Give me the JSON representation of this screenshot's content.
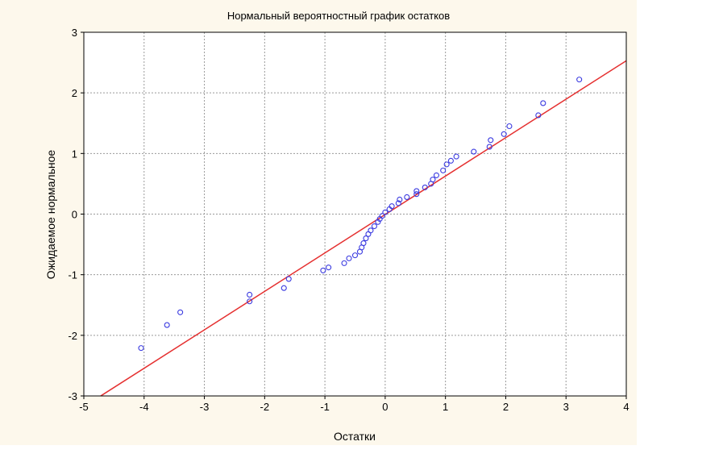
{
  "chart_data": {
    "type": "scatter",
    "title": "Нормальный вероятностный график остатков",
    "xlabel": "Остатки",
    "ylabel": "Ожидаемое нормальное",
    "xlim": [
      -5,
      4
    ],
    "ylim": [
      -3,
      3
    ],
    "xticks": [
      -5,
      -4,
      -3,
      -2,
      -1,
      0,
      1,
      2,
      3,
      4
    ],
    "yticks": [
      -3,
      -2,
      -1,
      0,
      1,
      2,
      3
    ],
    "grid": true,
    "background_color": "#fdf8ec",
    "point_color": "#3a3ae0",
    "line_color": "#e53030",
    "points": [
      [
        -4.05,
        -2.21
      ],
      [
        -3.62,
        -1.83
      ],
      [
        -3.4,
        -1.62
      ],
      [
        -2.25,
        -1.44
      ],
      [
        -2.25,
        -1.33
      ],
      [
        -1.68,
        -1.22
      ],
      [
        -1.6,
        -1.07
      ],
      [
        -1.03,
        -0.93
      ],
      [
        -0.94,
        -0.88
      ],
      [
        -0.68,
        -0.81
      ],
      [
        -0.6,
        -0.73
      ],
      [
        -0.5,
        -0.68
      ],
      [
        -0.42,
        -0.62
      ],
      [
        -0.39,
        -0.55
      ],
      [
        -0.36,
        -0.48
      ],
      [
        -0.32,
        -0.4
      ],
      [
        -0.28,
        -0.33
      ],
      [
        -0.24,
        -0.27
      ],
      [
        -0.18,
        -0.2
      ],
      [
        -0.12,
        -0.13
      ],
      [
        -0.09,
        -0.08
      ],
      [
        -0.05,
        -0.03
      ],
      [
        0.0,
        0.03
      ],
      [
        0.07,
        0.08
      ],
      [
        0.11,
        0.13
      ],
      [
        0.22,
        0.18
      ],
      [
        0.24,
        0.24
      ],
      [
        0.36,
        0.28
      ],
      [
        0.52,
        0.33
      ],
      [
        0.52,
        0.38
      ],
      [
        0.66,
        0.44
      ],
      [
        0.76,
        0.5
      ],
      [
        0.79,
        0.57
      ],
      [
        0.85,
        0.64
      ],
      [
        0.96,
        0.72
      ],
      [
        1.02,
        0.82
      ],
      [
        1.09,
        0.88
      ],
      [
        1.18,
        0.95
      ],
      [
        1.47,
        1.03
      ],
      [
        1.73,
        1.11
      ],
      [
        1.75,
        1.22
      ],
      [
        1.97,
        1.32
      ],
      [
        2.06,
        1.45
      ],
      [
        2.54,
        1.63
      ],
      [
        2.62,
        1.83
      ],
      [
        3.22,
        2.22
      ]
    ],
    "reference_line": {
      "x": [
        -4.72,
        4.0
      ],
      "y": [
        -3.0,
        2.53
      ]
    }
  }
}
